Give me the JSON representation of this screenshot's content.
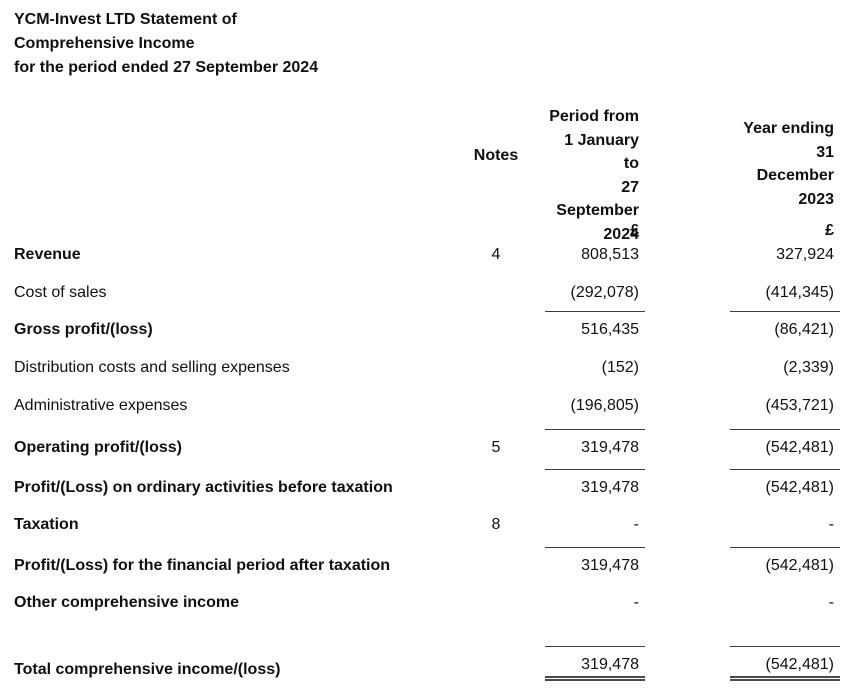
{
  "document": {
    "title_lines": [
      "YCM-Invest LTD Statement of",
      "Comprehensive Income",
      "for the period ended 27 September 2024"
    ]
  },
  "table": {
    "headers": {
      "notes": "Notes",
      "period": "Period from\n1 January to\n27\nSeptember\n2024",
      "year": "Year ending\n31\nDecember\n2023",
      "currency_period": "£",
      "currency_year": "£"
    },
    "rows": [
      {
        "label": "Revenue",
        "note": "4",
        "period": "808,513",
        "year": "327,924"
      },
      {
        "label": "Cost of sales",
        "note": "",
        "period": "(292,078)",
        "year": "(414,345)"
      },
      {
        "label": "Gross profit/(loss)",
        "note": "",
        "period": "516,435",
        "year": "(86,421)"
      },
      {
        "label": "Distribution costs and selling expenses",
        "note": "",
        "period": "(152)",
        "year": "(2,339)"
      },
      {
        "label": "Administrative expenses",
        "note": "",
        "period": "(196,805)",
        "year": "(453,721)"
      },
      {
        "label": "Operating profit/(loss)",
        "note": "5",
        "period": "319,478",
        "year": "(542,481)"
      },
      {
        "label": "Profit/(Loss) on ordinary activities before taxation",
        "note": "",
        "period": "319,478",
        "year": "(542,481)"
      },
      {
        "label": "Taxation",
        "note": "8",
        "period": "-",
        "year": "-"
      },
      {
        "label": "Profit/(Loss) for the financial period after taxation",
        "note": "",
        "period": "319,478",
        "year": "(542,481)"
      },
      {
        "label": "Other comprehensive income",
        "note": "",
        "period": "-",
        "year": "-"
      },
      {
        "label": "Total comprehensive income/(loss)",
        "note": "",
        "period": "319,478",
        "year": "(542,481)"
      }
    ]
  }
}
